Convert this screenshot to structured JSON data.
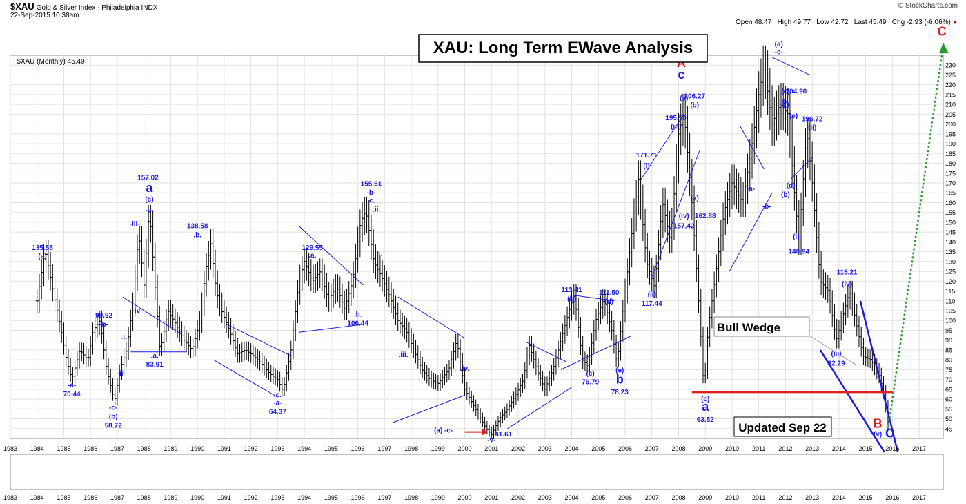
{
  "header": {
    "symbol": "$XAU",
    "name": "Gold & Silver Index - Philadelphia INDX",
    "timestamp": "22-Sep-2015 10:38am",
    "copyright": "© StockCharts.com",
    "quote": "Open 48.47   High 49.77   Low 42.72   Last 45.49   Chg -2.93 (-6.06%)",
    "legend": "$XAU (Monthly) 45.49"
  },
  "chart_data": {
    "type": "ohlc",
    "title": "XAU: Long Term EWave Analysis",
    "note": "Updated Sep 22",
    "wedge_label": "Bull Wedge",
    "y_axis_position": "right",
    "ylim": [
      40,
      235
    ],
    "yticks": [
      45,
      50,
      55,
      60,
      65,
      70,
      75,
      80,
      85,
      90,
      95,
      100,
      105,
      110,
      115,
      120,
      125,
      130,
      135,
      140,
      145,
      150,
      155,
      160,
      165,
      170,
      175,
      180,
      185,
      190,
      195,
      200,
      205,
      210,
      215,
      220,
      225,
      230
    ],
    "xlim": [
      1983.0,
      2017.9
    ],
    "xticks": [
      1983,
      1984,
      1985,
      1986,
      1987,
      1988,
      1989,
      1990,
      1991,
      1992,
      1993,
      1994,
      1995,
      1996,
      1997,
      1998,
      1999,
      2000,
      2001,
      2002,
      2003,
      2004,
      2005,
      2006,
      2007,
      2008,
      2009,
      2010,
      2011,
      2012,
      2013,
      2014,
      2015,
      2016,
      2017
    ],
    "price_path": [
      [
        1984.0,
        110
      ],
      [
        1984.3,
        136
      ],
      [
        1984.6,
        115
      ],
      [
        1984.9,
        95
      ],
      [
        1985.1,
        80
      ],
      [
        1985.3,
        70
      ],
      [
        1985.6,
        85
      ],
      [
        1985.9,
        80
      ],
      [
        1986.1,
        95
      ],
      [
        1986.35,
        100
      ],
      [
        1986.6,
        75
      ],
      [
        1986.9,
        59
      ],
      [
        1987.1,
        75
      ],
      [
        1987.35,
        85
      ],
      [
        1987.6,
        110
      ],
      [
        1987.8,
        145
      ],
      [
        1988.0,
        118
      ],
      [
        1988.2,
        157
      ],
      [
        1988.4,
        120
      ],
      [
        1988.6,
        84
      ],
      [
        1988.9,
        105
      ],
      [
        1989.2,
        98
      ],
      [
        1989.5,
        90
      ],
      [
        1989.8,
        85
      ],
      [
        1990.1,
        100
      ],
      [
        1990.3,
        125
      ],
      [
        1990.5,
        139
      ],
      [
        1990.7,
        115
      ],
      [
        1990.9,
        105
      ],
      [
        1991.2,
        95
      ],
      [
        1991.5,
        83
      ],
      [
        1991.8,
        85
      ],
      [
        1992.1,
        82
      ],
      [
        1992.4,
        78
      ],
      [
        1992.7,
        73
      ],
      [
        1993.0,
        70
      ],
      [
        1993.2,
        64
      ],
      [
        1993.5,
        85
      ],
      [
        1993.8,
        120
      ],
      [
        1994.0,
        130
      ],
      [
        1994.3,
        120
      ],
      [
        1994.6,
        125
      ],
      [
        1994.9,
        110
      ],
      [
        1995.2,
        118
      ],
      [
        1995.5,
        106
      ],
      [
        1995.8,
        120
      ],
      [
        1996.1,
        150
      ],
      [
        1996.3,
        156
      ],
      [
        1996.6,
        130
      ],
      [
        1996.9,
        122
      ],
      [
        1997.2,
        112
      ],
      [
        1997.5,
        100
      ],
      [
        1997.8,
        95
      ],
      [
        1998.1,
        85
      ],
      [
        1998.4,
        75
      ],
      [
        1998.7,
        70
      ],
      [
        1999.0,
        68
      ],
      [
        1999.4,
        75
      ],
      [
        1999.7,
        90
      ],
      [
        2000.0,
        65
      ],
      [
        2000.4,
        55
      ],
      [
        2000.8,
        45
      ],
      [
        2001.0,
        42
      ],
      [
        2001.3,
        50
      ],
      [
        2001.6,
        55
      ],
      [
        2001.9,
        62
      ],
      [
        2002.2,
        70
      ],
      [
        2002.4,
        88
      ],
      [
        2002.7,
        75
      ],
      [
        2003.0,
        65
      ],
      [
        2003.3,
        75
      ],
      [
        2003.6,
        90
      ],
      [
        2003.9,
        105
      ],
      [
        2004.1,
        113
      ],
      [
        2004.4,
        80
      ],
      [
        2004.6,
        77
      ],
      [
        2004.9,
        100
      ],
      [
        2005.2,
        111
      ],
      [
        2005.5,
        95
      ],
      [
        2005.7,
        78
      ],
      [
        2006.0,
        115
      ],
      [
        2006.3,
        150
      ],
      [
        2006.5,
        172
      ],
      [
        2006.8,
        130
      ],
      [
        2007.1,
        117
      ],
      [
        2007.4,
        160
      ],
      [
        2007.7,
        140
      ],
      [
        2008.0,
        195
      ],
      [
        2008.2,
        206
      ],
      [
        2008.5,
        160
      ],
      [
        2008.8,
        100
      ],
      [
        2008.95,
        64
      ],
      [
        2009.1,
        95
      ],
      [
        2009.4,
        125
      ],
      [
        2009.7,
        155
      ],
      [
        2010.0,
        170
      ],
      [
        2010.4,
        160
      ],
      [
        2010.7,
        185
      ],
      [
        2011.0,
        215
      ],
      [
        2011.2,
        230
      ],
      [
        2011.5,
        200
      ],
      [
        2011.8,
        210
      ],
      [
        2012.1,
        205
      ],
      [
        2012.3,
        170
      ],
      [
        2012.5,
        141
      ],
      [
        2012.8,
        197
      ],
      [
        2013.0,
        170
      ],
      [
        2013.3,
        120
      ],
      [
        2013.6,
        115
      ],
      [
        2013.9,
        90
      ],
      [
        2014.1,
        100
      ],
      [
        2014.4,
        115
      ],
      [
        2014.7,
        95
      ],
      [
        2014.9,
        82
      ],
      [
        2015.2,
        80
      ],
      [
        2015.5,
        72
      ],
      [
        2015.7,
        62
      ],
      [
        2015.85,
        45
      ]
    ],
    "annotations": [
      {
        "x": 1984.2,
        "y": 135.88,
        "text": "135.88"
      },
      {
        "x": 1984.2,
        "y": 131.5,
        "text": "(a)"
      },
      {
        "x": 1985.3,
        "y": 66,
        "text": "-a-"
      },
      {
        "x": 1985.3,
        "y": 61.5,
        "text": "70.44"
      },
      {
        "x": 1986.5,
        "y": 101.5,
        "text": "99.92"
      },
      {
        "x": 1986.5,
        "y": 97,
        "text": "-b-"
      },
      {
        "x": 1986.85,
        "y": 54.5,
        "text": "-c-"
      },
      {
        "x": 1986.85,
        "y": 50,
        "text": "(b)"
      },
      {
        "x": 1986.85,
        "y": 45.5,
        "text": "58.72"
      },
      {
        "x": 1987.25,
        "y": 90,
        "text": "-i-"
      },
      {
        "x": 1987.15,
        "y": 72,
        "text": "-ii-"
      },
      {
        "x": 1987.65,
        "y": 148,
        "text": "-iii-"
      },
      {
        "x": 1987.75,
        "y": 104,
        "text": "-iv-"
      },
      {
        "x": 1988.15,
        "y": 171.5,
        "text": "157.02"
      },
      {
        "x": 1988.2,
        "y": 160.5,
        "text": "(c)"
      },
      {
        "x": 1988.2,
        "y": 155,
        "text": "-v-"
      },
      {
        "x": 1988.4,
        "y": 81,
        "text": ".a."
      },
      {
        "x": 1988.4,
        "y": 76.5,
        "text": "83.91"
      },
      {
        "x": 1990.0,
        "y": 147,
        "text": "138.58"
      },
      {
        "x": 1990.0,
        "y": 142.5,
        "text": ".b."
      },
      {
        "x": 1993.0,
        "y": 61,
        "text": ".c."
      },
      {
        "x": 1993.0,
        "y": 57,
        "text": "-a-"
      },
      {
        "x": 1993.0,
        "y": 52.5,
        "text": "64.37"
      },
      {
        "x": 1994.3,
        "y": 136,
        "text": "129.55"
      },
      {
        "x": 1994.3,
        "y": 132,
        "text": ".a."
      },
      {
        "x": 1996.0,
        "y": 102,
        "text": ".b."
      },
      {
        "x": 1996.0,
        "y": 97.5,
        "text": "106.44"
      },
      {
        "x": 1996.5,
        "y": 168.5,
        "text": "155.61"
      },
      {
        "x": 1996.5,
        "y": 164,
        "text": "-b-"
      },
      {
        "x": 1996.5,
        "y": 160,
        "text": ".c."
      },
      {
        "x": 1996.7,
        "y": 155.5,
        "text": ".ii."
      },
      {
        "x": 1996.8,
        "y": 133,
        "text": ".i."
      },
      {
        "x": 1997.7,
        "y": 81.5,
        "text": ".iii."
      },
      {
        "x": 2000.0,
        "y": 74.5,
        "text": ".iv."
      },
      {
        "x": 1999.2,
        "y": 43,
        "text": "(a) -c-"
      },
      {
        "x": 2001.0,
        "y": 38,
        "text": "-v-"
      },
      {
        "x": 2001.45,
        "y": 41,
        "text": "41.61"
      },
      {
        "x": 2004.0,
        "y": 114.5,
        "text": "113.41"
      },
      {
        "x": 2004.0,
        "y": 110,
        "text": "(b)"
      },
      {
        "x": 2005.4,
        "y": 113,
        "text": "111.50"
      },
      {
        "x": 2005.4,
        "y": 108.5,
        "text": "(d)"
      },
      {
        "x": 2004.7,
        "y": 72,
        "text": "(c)"
      },
      {
        "x": 2004.7,
        "y": 67.5,
        "text": "76.79"
      },
      {
        "x": 2005.8,
        "y": 73.5,
        "text": "(e)"
      },
      {
        "x": 2005.8,
        "y": 62.5,
        "text": "78.23"
      },
      {
        "x": 2006.8,
        "y": 183,
        "text": "171.71"
      },
      {
        "x": 2006.8,
        "y": 177.5,
        "text": "(i)"
      },
      {
        "x": 2007.0,
        "y": 112,
        "text": "(ii)"
      },
      {
        "x": 2007.0,
        "y": 107.5,
        "text": "117.44"
      },
      {
        "x": 2007.9,
        "y": 202,
        "text": "195.50"
      },
      {
        "x": 2007.9,
        "y": 197.5,
        "text": "(iii)"
      },
      {
        "x": 2008.2,
        "y": 212,
        "text": "(v)"
      },
      {
        "x": 2008.6,
        "y": 213,
        "text": "206.27"
      },
      {
        "x": 2008.6,
        "y": 208.5,
        "text": "(b)"
      },
      {
        "x": 2008.2,
        "y": 152,
        "text": "(iv)"
      },
      {
        "x": 2008.2,
        "y": 147,
        "text": "157.42"
      },
      {
        "x": 2008.6,
        "y": 161,
        "text": "(a)"
      },
      {
        "x": 2009.0,
        "y": 152,
        "text": "162.88"
      },
      {
        "x": 2009.0,
        "y": 59,
        "text": "(c)"
      },
      {
        "x": 2009.0,
        "y": 48.5,
        "text": "63.52"
      },
      {
        "x": 2010.7,
        "y": 166,
        "text": "-a-"
      },
      {
        "x": 2011.3,
        "y": 157,
        "text": "-b-"
      },
      {
        "x": 2011.75,
        "y": 239.5,
        "text": "(a)"
      },
      {
        "x": 2011.75,
        "y": 235.5,
        "text": "-c-"
      },
      {
        "x": 2012.0,
        "y": 215.5,
        "text": "(c)"
      },
      {
        "x": 2012.4,
        "y": 215.5,
        "text": "204.90"
      },
      {
        "x": 2012.3,
        "y": 203,
        "text": "(e)"
      },
      {
        "x": 2012.2,
        "y": 167.5,
        "text": "(d)"
      },
      {
        "x": 2012.0,
        "y": 163,
        "text": "(b)"
      },
      {
        "x": 2013.0,
        "y": 201.5,
        "text": "196.72"
      },
      {
        "x": 2013.0,
        "y": 197,
        "text": "(ii)"
      },
      {
        "x": 2012.4,
        "y": 141.5,
        "text": "(i)"
      },
      {
        "x": 2012.5,
        "y": 134,
        "text": "140.94"
      },
      {
        "x": 2014.3,
        "y": 123.5,
        "text": "115.21"
      },
      {
        "x": 2014.3,
        "y": 117.5,
        "text": "(iv)"
      },
      {
        "x": 2013.9,
        "y": 82,
        "text": "(iii)"
      },
      {
        "x": 2013.9,
        "y": 77,
        "text": "82.29"
      },
      {
        "x": 2015.45,
        "y": 41,
        "text": "(v)"
      }
    ],
    "wave_labels": [
      {
        "x": 2008.1,
        "y": 229,
        "text": "A",
        "color": "#e02020"
      },
      {
        "x": 2008.1,
        "y": 223,
        "text": "c",
        "color": "#1a1ae0"
      },
      {
        "x": 2012.0,
        "y": 208,
        "text": "b",
        "color": "#1a1ae0"
      },
      {
        "x": 2009.0,
        "y": 54,
        "text": "a",
        "color": "#1a1ae0"
      },
      {
        "x": 1988.2,
        "y": 165.5,
        "text": "a",
        "color": "#1a1ae0"
      },
      {
        "x": 2005.8,
        "y": 68,
        "text": "b",
        "color": "#1a1ae0"
      },
      {
        "x": 2015.45,
        "y": 45.5,
        "text": "B",
        "color": "#e02020"
      },
      {
        "x": 2015.9,
        "y": 40.5,
        "text": "C",
        "color": "#1a1ae0"
      },
      {
        "x": 2017.85,
        "y": 245,
        "text": "C",
        "color": "#e02020"
      }
    ],
    "colors": {
      "bars": "#000000",
      "wave_text": "#1a1ae0",
      "major": "#e02020",
      "trendline": "#1a1ae0",
      "support": "#e02020",
      "projection": "#2a9a2a"
    }
  }
}
